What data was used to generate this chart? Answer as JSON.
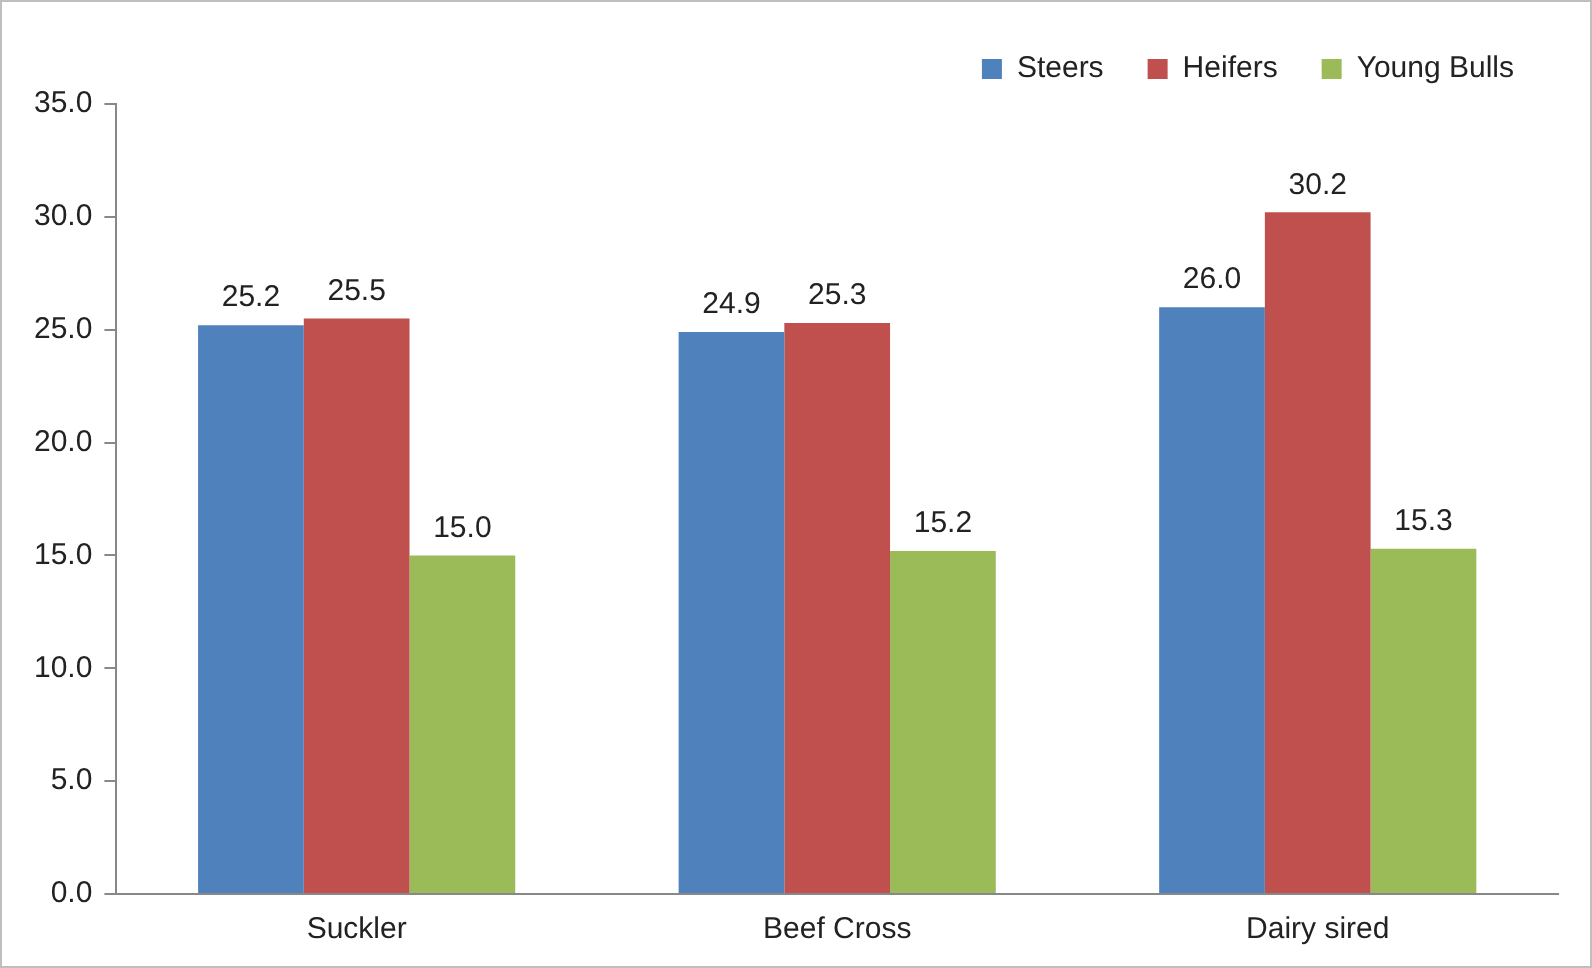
{
  "chart_data": {
    "type": "bar",
    "categories": [
      "Suckler",
      "Beef Cross",
      "Dairy sired"
    ],
    "series": [
      {
        "name": "Steers",
        "color": "#4f81bd",
        "values": [
          25.2,
          24.9,
          26.0
        ],
        "value_labels": [
          "25.2",
          "24.9",
          "26.0"
        ]
      },
      {
        "name": "Heifers",
        "color": "#c0504d",
        "values": [
          25.5,
          25.3,
          30.2
        ],
        "value_labels": [
          "25.5",
          "25.3",
          "30.2"
        ]
      },
      {
        "name": "Young Bulls",
        "color": "#9bbb59",
        "values": [
          15.0,
          15.2,
          15.3
        ],
        "value_labels": [
          "15.0",
          "15.2",
          "15.3"
        ]
      }
    ],
    "ylim": [
      0,
      35
    ],
    "yticks": [
      {
        "value": 0,
        "label": "0.0"
      },
      {
        "value": 5,
        "label": "5.0"
      },
      {
        "value": 10,
        "label": "10.0"
      },
      {
        "value": 15,
        "label": "15.0"
      },
      {
        "value": 20,
        "label": "20.0"
      },
      {
        "value": 25,
        "label": "25.0"
      },
      {
        "value": 30,
        "label": "30.0"
      },
      {
        "value": 35,
        "label": "35.0"
      }
    ],
    "grid": false,
    "legend": "top right"
  }
}
